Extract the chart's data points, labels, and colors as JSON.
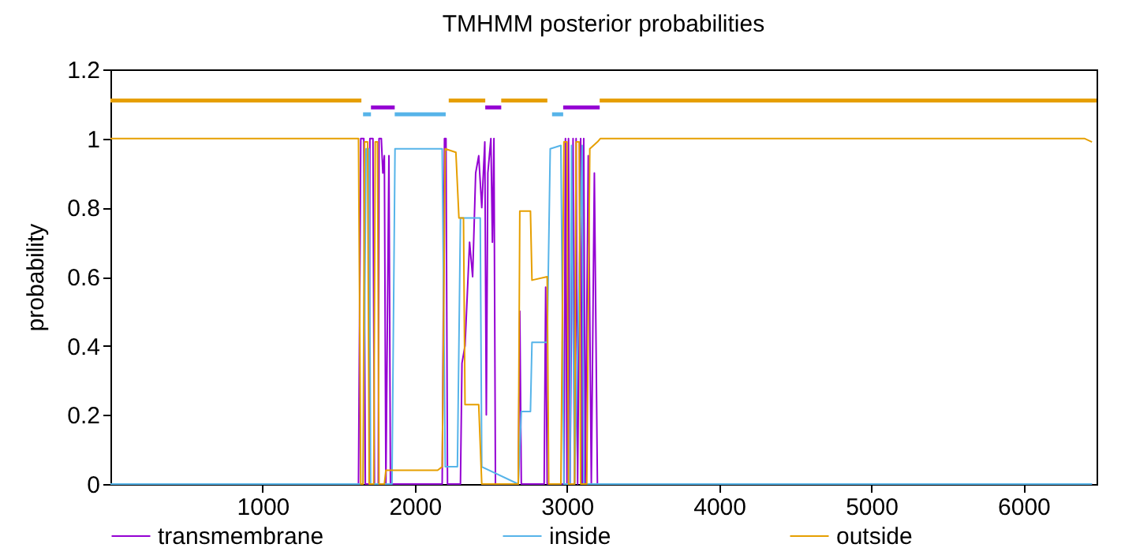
{
  "chart_data": {
    "type": "line",
    "title": "TMHMM posterior probabilities",
    "ylabel": "probability",
    "xlim": [
      0,
      6480
    ],
    "xticks": [
      1000,
      2000,
      3000,
      4000,
      5000,
      6000
    ],
    "ylim": [
      0,
      1.2
    ],
    "yticks": [
      0,
      0.2,
      0.4,
      0.6,
      0.8,
      1,
      1.2
    ],
    "grid": false,
    "legend": "bottom",
    "marker": "none",
    "line_style": "solid",
    "series": [
      {
        "name": "transmembrane",
        "color": "#9400d3",
        "x": [
          0,
          1630,
          1645,
          1665,
          1675,
          1700,
          1705,
          1725,
          1735,
          1760,
          1765,
          1780,
          1790,
          1800,
          1810,
          1830,
          1840,
          2180,
          2195,
          2205,
          2215,
          2300,
          2310,
          2330,
          2350,
          2360,
          2380,
          2400,
          2420,
          2440,
          2460,
          2470,
          2480,
          2490,
          2500,
          2510,
          2520,
          2530,
          2680,
          2690,
          2700,
          2850,
          2860,
          2870,
          2980,
          2990,
          3000,
          3010,
          3020,
          3040,
          3050,
          3060,
          3070,
          3090,
          3100,
          3110,
          3120,
          3140,
          3160,
          3180,
          3200,
          6450
        ],
        "values": [
          0,
          0,
          1,
          1,
          0,
          0,
          1,
          1,
          0,
          0,
          1,
          1,
          0.9,
          0.95,
          0,
          0.95,
          0,
          0,
          1,
          1,
          0,
          0,
          0.35,
          0.4,
          0.6,
          0.7,
          0.6,
          0.9,
          0.95,
          0.8,
          0.99,
          0.2,
          0.9,
          0.95,
          1,
          0.7,
          1,
          0,
          0,
          0.5,
          0,
          0,
          0.57,
          0,
          0,
          1,
          0,
          1,
          0,
          1,
          0,
          1,
          0,
          1,
          0,
          1,
          0,
          0.95,
          0,
          0.9,
          0,
          0
        ]
      },
      {
        "name": "inside",
        "color": "#56b4e9",
        "x": [
          0,
          1640,
          1660,
          1680,
          1700,
          1710,
          1850,
          1870,
          2180,
          2200,
          2280,
          2300,
          2430,
          2440,
          2680,
          2700,
          2760,
          2770,
          2870,
          2890,
          2960,
          2980,
          3020,
          3030,
          3050,
          3100,
          3110,
          3220,
          6450
        ],
        "values": [
          0,
          0,
          0,
          0.97,
          0.97,
          0,
          0,
          0.97,
          0.97,
          0.05,
          0.05,
          0.77,
          0.77,
          0.05,
          0,
          0.21,
          0.21,
          0.41,
          0.41,
          0.97,
          0.98,
          0,
          0,
          0.98,
          0,
          0.98,
          0,
          0,
          0
        ]
      },
      {
        "name": "outside",
        "color": "#e69f00",
        "x": [
          0,
          1630,
          1645,
          1660,
          1670,
          1690,
          1700,
          1730,
          1740,
          1755,
          1765,
          1800,
          1810,
          2150,
          2180,
          2200,
          2270,
          2290,
          2320,
          2330,
          2420,
          2440,
          2680,
          2690,
          2760,
          2770,
          2870,
          2880,
          2960,
          2980,
          3000,
          3010,
          3050,
          3060,
          3080,
          3090,
          3130,
          3150,
          3200,
          3220,
          6400,
          6450
        ],
        "values": [
          1,
          1,
          0,
          0,
          0.99,
          0.99,
          0,
          0,
          0.99,
          0.99,
          0,
          0,
          0.04,
          0.04,
          0.05,
          0.97,
          0.96,
          0.77,
          0.77,
          0.23,
          0.23,
          0,
          0,
          0.79,
          0.79,
          0.59,
          0.6,
          0,
          0,
          0.99,
          0.99,
          0,
          0,
          0.99,
          0.99,
          0,
          0,
          0.97,
          0.99,
          1,
          1,
          0.99
        ]
      },
      {
        "color": "#e69f00",
        "x": [
          0,
          1649,
          1650,
          2223,
          2463,
          2464,
          2568,
          2871,
          2872,
          3215,
          6480
        ],
        "values": [
          1.11,
          1.11,
          null,
          1.11,
          1.11,
          null,
          1.11,
          1.11,
          null,
          1.11,
          1.11
        ]
      },
      {
        "color": "#56b4e9",
        "x": [
          1660,
          1712,
          1713,
          1868,
          2203,
          2204,
          2902,
          2975
        ],
        "values": [
          1.07,
          1.07,
          null,
          1.07,
          1.07,
          null,
          1.07,
          1.07
        ]
      },
      {
        "color": "#9400d3",
        "x": [
          1712,
          1868,
          1869,
          2463,
          2568,
          2569,
          2975,
          3215
        ],
        "values": [
          1.09,
          1.09,
          null,
          1.09,
          1.09,
          null,
          1.09,
          1.09
        ]
      }
    ]
  }
}
